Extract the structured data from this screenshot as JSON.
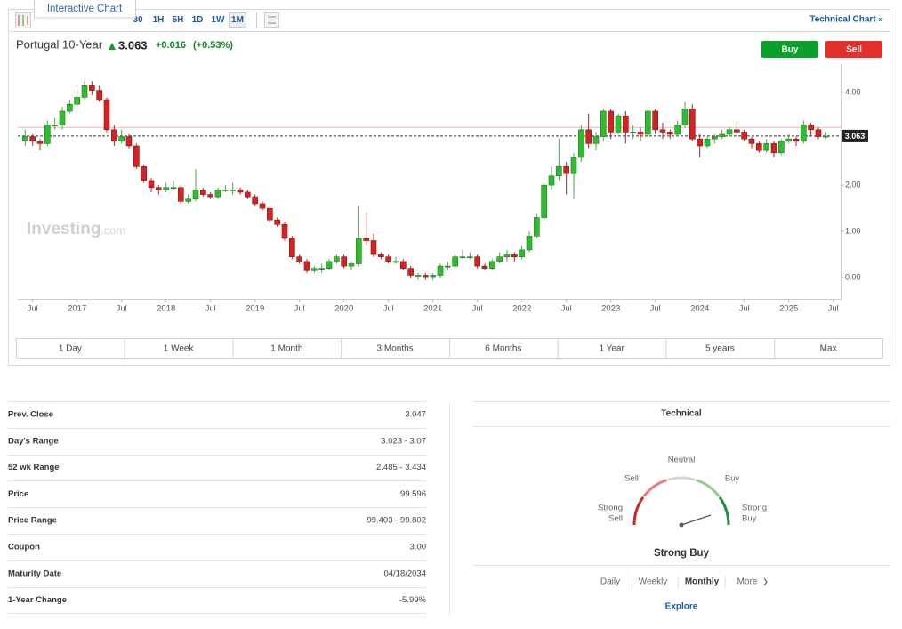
{
  "toolbar": {
    "tooltip": "Interactive Chart",
    "intervals": [
      "30",
      "1H",
      "5H",
      "1D",
      "1W",
      "1M"
    ],
    "link": "Technical Chart »"
  },
  "header": {
    "name": "Portugal 10-Year",
    "change": "+0.016",
    "change_pct": "(+0.53%)",
    "buy": "Buy",
    "sell": "Sell"
  },
  "chart_data": {
    "type": "candlestick",
    "watermark": [
      "Investing",
      ".com"
    ],
    "last": 3.063,
    "ref_line": 3.25,
    "xlim": [
      "2016-05",
      "2025-08"
    ],
    "ylim": [
      -0.46,
      4.62
    ],
    "yticks": [
      {
        "value": 4,
        "label": "4.00"
      },
      {
        "value": 2,
        "label": "2.00"
      },
      {
        "value": 1,
        "label": "1.00"
      },
      {
        "value": 0,
        "label": "0.00"
      }
    ],
    "xticks": [
      {
        "value": "2016-07",
        "label": "Jul"
      },
      {
        "value": "2017-01",
        "label": "2017"
      },
      {
        "value": "2017-07",
        "label": "Jul"
      },
      {
        "value": "2018-01",
        "label": "2018"
      },
      {
        "value": "2018-07",
        "label": "Jul"
      },
      {
        "value": "2019-01",
        "label": "2019"
      },
      {
        "value": "2019-07",
        "label": "Jul"
      },
      {
        "value": "2020-01",
        "label": "2020"
      },
      {
        "value": "2020-07",
        "label": "Jul"
      },
      {
        "value": "2021-01",
        "label": "2021"
      },
      {
        "value": "2021-07",
        "label": "Jul"
      },
      {
        "value": "2022-01",
        "label": "2022"
      },
      {
        "value": "2022-07",
        "label": "Jul"
      },
      {
        "value": "2023-01",
        "label": "2023"
      },
      {
        "value": "2023-07",
        "label": "Jul"
      },
      {
        "value": "2024-01",
        "label": "2024"
      },
      {
        "value": "2024-07",
        "label": "Jul"
      },
      {
        "value": "2025-01",
        "label": "2025"
      },
      {
        "value": "2025-07",
        "label": "Jul"
      }
    ],
    "up_color": "#2dbd2d",
    "down_color": "#d42121",
    "x": [
      "2016-06",
      "2016-07",
      "2016-08",
      "2016-09",
      "2016-10",
      "2016-11",
      "2016-12",
      "2017-01",
      "2017-02",
      "2017-03",
      "2017-04",
      "2017-05",
      "2017-06",
      "2017-07",
      "2017-08",
      "2017-09",
      "2017-10",
      "2017-11",
      "2017-12",
      "2018-01",
      "2018-02",
      "2018-03",
      "2018-04",
      "2018-05",
      "2018-06",
      "2018-07",
      "2018-08",
      "2018-09",
      "2018-10",
      "2018-11",
      "2018-12",
      "2019-01",
      "2019-02",
      "2019-03",
      "2019-04",
      "2019-05",
      "2019-06",
      "2019-07",
      "2019-08",
      "2019-09",
      "2019-10",
      "2019-11",
      "2019-12",
      "2020-01",
      "2020-02",
      "2020-03",
      "2020-04",
      "2020-05",
      "2020-06",
      "2020-07",
      "2020-08",
      "2020-09",
      "2020-10",
      "2020-11",
      "2020-12",
      "2021-01",
      "2021-02",
      "2021-03",
      "2021-04",
      "2021-05",
      "2021-06",
      "2021-07",
      "2021-08",
      "2021-09",
      "2021-10",
      "2021-11",
      "2021-12",
      "2022-01",
      "2022-02",
      "2022-03",
      "2022-04",
      "2022-05",
      "2022-06",
      "2022-07",
      "2022-08",
      "2022-09",
      "2022-10",
      "2022-11",
      "2022-12",
      "2023-01",
      "2023-02",
      "2023-03",
      "2023-04",
      "2023-05",
      "2023-06",
      "2023-07",
      "2023-08",
      "2023-09",
      "2023-10",
      "2023-11",
      "2023-12",
      "2024-01",
      "2024-02",
      "2024-03",
      "2024-04",
      "2024-05",
      "2024-06",
      "2024-07",
      "2024-08",
      "2024-09",
      "2024-10",
      "2024-11",
      "2024-12",
      "2025-01",
      "2025-02",
      "2025-03",
      "2025-04",
      "2025-05",
      "2025-06"
    ],
    "ohlc": [
      [
        2.95,
        3.2,
        2.85,
        3.05
      ],
      [
        3.05,
        3.1,
        2.85,
        2.95
      ],
      [
        2.95,
        3.0,
        2.75,
        2.9
      ],
      [
        2.9,
        3.4,
        2.85,
        3.3
      ],
      [
        3.3,
        3.45,
        3.2,
        3.3
      ],
      [
        3.3,
        3.7,
        3.2,
        3.6
      ],
      [
        3.6,
        3.85,
        3.55,
        3.75
      ],
      [
        3.75,
        4.05,
        3.7,
        3.9
      ],
      [
        3.9,
        4.25,
        3.85,
        4.15
      ],
      [
        4.15,
        4.25,
        3.95,
        4.05
      ],
      [
        4.05,
        4.15,
        3.8,
        3.85
      ],
      [
        3.85,
        3.9,
        3.15,
        3.2
      ],
      [
        3.2,
        3.3,
        2.85,
        2.95
      ],
      [
        2.95,
        3.2,
        2.9,
        3.05
      ],
      [
        3.05,
        3.1,
        2.8,
        2.85
      ],
      [
        2.85,
        2.9,
        2.35,
        2.4
      ],
      [
        2.4,
        2.45,
        2.05,
        2.1
      ],
      [
        2.1,
        2.15,
        1.85,
        1.95
      ],
      [
        1.95,
        2.0,
        1.8,
        1.9
      ],
      [
        1.9,
        2.05,
        1.85,
        1.95
      ],
      [
        1.95,
        2.1,
        1.9,
        1.95
      ],
      [
        1.95,
        2.0,
        1.6,
        1.65
      ],
      [
        1.65,
        1.8,
        1.6,
        1.7
      ],
      [
        1.7,
        2.35,
        1.65,
        1.9
      ],
      [
        1.9,
        1.95,
        1.75,
        1.8
      ],
      [
        1.8,
        1.85,
        1.7,
        1.75
      ],
      [
        1.75,
        1.95,
        1.7,
        1.9
      ],
      [
        1.9,
        2.0,
        1.85,
        1.9
      ],
      [
        1.9,
        2.05,
        1.8,
        1.9
      ],
      [
        1.9,
        1.95,
        1.8,
        1.85
      ],
      [
        1.85,
        1.9,
        1.7,
        1.75
      ],
      [
        1.75,
        1.8,
        1.55,
        1.6
      ],
      [
        1.6,
        1.65,
        1.45,
        1.5
      ],
      [
        1.5,
        1.55,
        1.2,
        1.25
      ],
      [
        1.25,
        1.3,
        1.1,
        1.15
      ],
      [
        1.15,
        1.2,
        0.8,
        0.85
      ],
      [
        0.85,
        0.9,
        0.4,
        0.45
      ],
      [
        0.45,
        0.5,
        0.3,
        0.35
      ],
      [
        0.35,
        0.4,
        0.1,
        0.15
      ],
      [
        0.15,
        0.25,
        0.1,
        0.2
      ],
      [
        0.2,
        0.3,
        0.1,
        0.2
      ],
      [
        0.2,
        0.4,
        0.15,
        0.35
      ],
      [
        0.35,
        0.5,
        0.3,
        0.45
      ],
      [
        0.45,
        0.5,
        0.2,
        0.25
      ],
      [
        0.25,
        0.35,
        0.15,
        0.3
      ],
      [
        0.3,
        1.55,
        0.25,
        0.85
      ],
      [
        0.85,
        1.4,
        0.7,
        0.8
      ],
      [
        0.8,
        0.95,
        0.45,
        0.5
      ],
      [
        0.5,
        0.55,
        0.4,
        0.45
      ],
      [
        0.45,
        0.5,
        0.3,
        0.35
      ],
      [
        0.35,
        0.45,
        0.3,
        0.35
      ],
      [
        0.35,
        0.4,
        0.15,
        0.2
      ],
      [
        0.2,
        0.25,
        0.0,
        0.05
      ],
      [
        0.05,
        0.1,
        -0.05,
        0.05
      ],
      [
        0.05,
        0.1,
        -0.05,
        0.02
      ],
      [
        0.02,
        0.1,
        -0.05,
        0.05
      ],
      [
        0.05,
        0.3,
        0.0,
        0.25
      ],
      [
        0.25,
        0.35,
        0.15,
        0.25
      ],
      [
        0.25,
        0.5,
        0.2,
        0.45
      ],
      [
        0.45,
        0.6,
        0.4,
        0.45
      ],
      [
        0.45,
        0.55,
        0.4,
        0.45
      ],
      [
        0.45,
        0.5,
        0.2,
        0.25
      ],
      [
        0.25,
        0.3,
        0.15,
        0.2
      ],
      [
        0.2,
        0.4,
        0.15,
        0.35
      ],
      [
        0.35,
        0.55,
        0.3,
        0.45
      ],
      [
        0.45,
        0.6,
        0.35,
        0.5
      ],
      [
        0.5,
        0.55,
        0.35,
        0.45
      ],
      [
        0.45,
        0.7,
        0.4,
        0.6
      ],
      [
        0.6,
        1.0,
        0.55,
        0.9
      ],
      [
        0.9,
        1.4,
        0.85,
        1.3
      ],
      [
        1.3,
        2.05,
        1.25,
        2.0
      ],
      [
        2.0,
        2.4,
        1.9,
        2.2
      ],
      [
        2.2,
        3.0,
        2.1,
        2.4
      ],
      [
        2.4,
        2.5,
        1.8,
        2.25
      ],
      [
        2.25,
        2.7,
        1.7,
        2.6
      ],
      [
        2.6,
        3.3,
        2.5,
        3.2
      ],
      [
        3.2,
        3.55,
        2.8,
        2.9
      ],
      [
        2.9,
        3.15,
        2.75,
        3.05
      ],
      [
        3.05,
        3.65,
        2.95,
        3.6
      ],
      [
        3.6,
        3.65,
        3.0,
        3.15
      ],
      [
        3.15,
        3.55,
        3.1,
        3.5
      ],
      [
        3.5,
        3.6,
        2.9,
        3.15
      ],
      [
        3.15,
        3.3,
        3.0,
        3.15
      ],
      [
        3.15,
        3.25,
        2.95,
        3.1
      ],
      [
        3.1,
        3.65,
        3.05,
        3.6
      ],
      [
        3.6,
        3.65,
        3.1,
        3.2
      ],
      [
        3.2,
        3.35,
        3.0,
        3.15
      ],
      [
        3.15,
        3.2,
        3.0,
        3.1
      ],
      [
        3.1,
        3.4,
        3.05,
        3.3
      ],
      [
        3.3,
        3.8,
        3.25,
        3.65
      ],
      [
        3.65,
        3.75,
        2.95,
        3.0
      ],
      [
        3.0,
        3.1,
        2.6,
        2.85
      ],
      [
        2.85,
        3.05,
        2.8,
        3.0
      ],
      [
        3.0,
        3.1,
        2.9,
        3.05
      ],
      [
        3.05,
        3.2,
        3.0,
        3.1
      ],
      [
        3.1,
        3.25,
        3.05,
        3.2
      ],
      [
        3.2,
        3.35,
        3.1,
        3.15
      ],
      [
        3.15,
        3.2,
        2.95,
        3.0
      ],
      [
        3.0,
        3.05,
        2.8,
        2.9
      ],
      [
        2.9,
        2.95,
        2.7,
        2.75
      ],
      [
        2.75,
        3.0,
        2.7,
        2.9
      ],
      [
        2.9,
        2.95,
        2.6,
        2.7
      ],
      [
        2.7,
        3.0,
        2.65,
        2.95
      ],
      [
        2.95,
        3.1,
        2.9,
        3.0
      ],
      [
        3.0,
        3.05,
        2.85,
        2.95
      ],
      [
        2.95,
        3.4,
        2.9,
        3.3
      ],
      [
        3.3,
        3.35,
        3.05,
        3.2
      ],
      [
        3.2,
        3.25,
        3.0,
        3.05
      ],
      [
        3.05,
        3.15,
        3.0,
        3.06
      ]
    ]
  },
  "ranges": [
    "1 Day",
    "1 Week",
    "1 Month",
    "3 Months",
    "6 Months",
    "1 Year",
    "5 years",
    "Max"
  ],
  "stats": [
    [
      "Prev. Close",
      "3.047"
    ],
    [
      "Day's Range",
      "3.023 - 3.07"
    ],
    [
      "52 wk Range",
      "2.485 - 3.434"
    ],
    [
      "Price",
      "99.596"
    ],
    [
      "Price Range",
      "99.403 - 99.802"
    ],
    [
      "Coupon",
      "3.00"
    ],
    [
      "Maturity Date",
      "04/18/2034"
    ],
    [
      "1-Year Change",
      "-5.99%"
    ]
  ],
  "technical": {
    "title": "Technical",
    "neutral": "Neutral",
    "sell": "Sell",
    "buy": "Buy",
    "strong_sell": [
      "Strong",
      "Sell"
    ],
    "strong_buy": [
      "Strong",
      "Buy"
    ],
    "summary": "Strong Buy",
    "tabs": [
      "Daily",
      "Weekly",
      "Monthly",
      "More"
    ],
    "explore": "Explore"
  }
}
